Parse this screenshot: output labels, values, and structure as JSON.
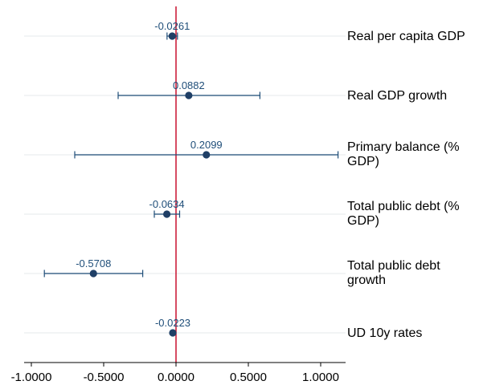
{
  "chart_data": {
    "type": "coefficient-plot",
    "title": "",
    "xlabel": "",
    "ylabel": "",
    "xlim": [
      -1.05,
      1.18
    ],
    "x_ticks": [
      -1.0,
      -0.5,
      0.0,
      0.5,
      1.0
    ],
    "x_tick_labels": [
      "-1.0000",
      "-0.5000",
      "0.0000",
      "0.5000",
      "1.0000"
    ],
    "reference_line": 0,
    "reference_color": "#c8102e",
    "point_color": "#1f3f66",
    "grid": true,
    "rows": [
      {
        "label": [
          "Real per capita GDP"
        ],
        "estimate": -0.0261,
        "estimate_label": "-0.0261",
        "ci_low": -0.062,
        "ci_high": 0.01
      },
      {
        "label": [
          "Real GDP growth"
        ],
        "estimate": 0.0882,
        "estimate_label": "0.0882",
        "ci_low": -0.4,
        "ci_high": 0.58
      },
      {
        "label": [
          "Primary balance (%",
          "GDP)"
        ],
        "estimate": 0.2099,
        "estimate_label": "0.2099",
        "ci_low": -0.7,
        "ci_high": 1.12
      },
      {
        "label": [
          "Total public debt (%",
          "GDP)"
        ],
        "estimate": -0.0634,
        "estimate_label": "-0.0634",
        "ci_low": -0.15,
        "ci_high": 0.025
      },
      {
        "label": [
          "Total public debt",
          "growth"
        ],
        "estimate": -0.5708,
        "estimate_label": "-0.5708",
        "ci_low": -0.91,
        "ci_high": -0.23
      },
      {
        "label": [
          "UD 10y rates"
        ],
        "estimate": -0.0223,
        "estimate_label": "-0.0223",
        "ci_low": null,
        "ci_high": null
      }
    ]
  }
}
